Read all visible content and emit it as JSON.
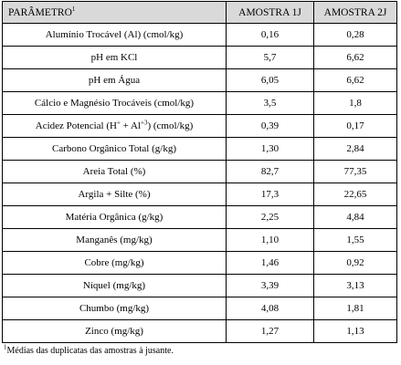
{
  "table": {
    "headers": [
      "PARÂMETRO",
      "AMOSTRA 1J",
      "AMOSTRA 2J"
    ],
    "header_sup": "1",
    "rows": [
      {
        "param": "Alumínio Trocável (Al) (cmol/kg)",
        "a1": "0,16",
        "a2": "0,28"
      },
      {
        "param": "pH em KCl",
        "a1": "5,7",
        "a2": "6,62"
      },
      {
        "param": "pH em Água",
        "a1": "6,05",
        "a2": "6,62"
      },
      {
        "param": "Cálcio e Magnésio Trocáveis (cmol/kg)",
        "a1": "3,5",
        "a2": "1,8"
      },
      {
        "param_html": "Acidez Potencial  (H<sup>+</sup> + Al<sup>+3</sup>) (cmol/kg)",
        "a1": "0,39",
        "a2": "0,17"
      },
      {
        "param": "Carbono Orgânico Total  (g/kg)",
        "a1": "1,30",
        "a2": "2,84"
      },
      {
        "param": "Areia Total  (%)",
        "a1": "82,7",
        "a2": "77,35"
      },
      {
        "param": "Argila + Silte  (%)",
        "a1": "17,3",
        "a2": "22,65"
      },
      {
        "param": "Matéria Orgânica  (g/kg)",
        "a1": "2,25",
        "a2": "4,84"
      },
      {
        "param": "Manganês (mg/kg)",
        "a1": "1,10",
        "a2": "1,55"
      },
      {
        "param": "Cobre (mg/kg)",
        "a1": "1,46",
        "a2": "0,92"
      },
      {
        "param": "Níquel (mg/kg)",
        "a1": "3,39",
        "a2": "3,13"
      },
      {
        "param": "Chumbo (mg/kg)",
        "a1": "4,08",
        "a2": "1,81"
      },
      {
        "param": "Zinco (mg/kg)",
        "a1": "1,27",
        "a2": "1,13"
      }
    ]
  },
  "footnote": {
    "sup": "1",
    "text": "Médias das duplicatas das amostras à jusante."
  }
}
